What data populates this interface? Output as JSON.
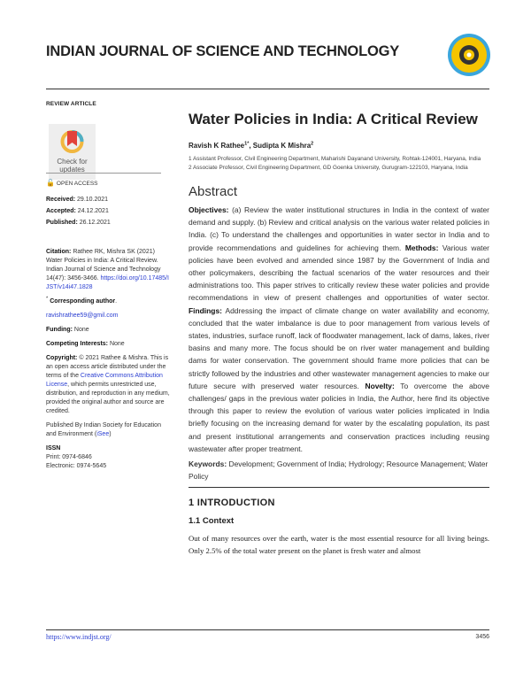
{
  "header": {
    "journal": "INDIAN JOURNAL OF SCIENCE AND TECHNOLOGY",
    "article_type": "REVIEW ARTICLE"
  },
  "badge": {
    "line1": "Check for",
    "line2": "updates"
  },
  "sidebar": {
    "open_access": "OPEN ACCESS",
    "received_label": "Received:",
    "received": "29.10.2021",
    "accepted_label": "Accepted:",
    "accepted": "24.12.2021",
    "published_label": "Published:",
    "published": "26.12.2021",
    "citation_label": "Citation:",
    "citation_text": "Rathee RK, Mishra SK (2021) Water Policies in India: A Critical Review. Indian Journal of Science and Technology 14(47): 3456-3466.",
    "citation_link": "https://doi.org/10.17485/IJST/v14i47.1828",
    "corresponding_mark": "*",
    "corresponding_label": "Corresponding author",
    "email": "ravishrathee59@gmil.com",
    "funding_label": "Funding:",
    "funding": "None",
    "competing_label": "Competing Interests:",
    "competing": "None",
    "copyright_label": "Copyright:",
    "copyright_text": "© 2021 Rathee & Mishra. This is an open access article distributed under the terms of the",
    "license_link": "Creative Commons Attribution License",
    "copyright_tail": ", which permits unrestricted use, distribution, and reproduction in any medium, provided the original author and source are credited.",
    "publisher_text": "Published By Indian Society for Education and Environment (",
    "publisher_link": "iSee",
    "publisher_close": ")",
    "issn_label": "ISSN",
    "print": "Print: 0974-6846",
    "electronic": "Electronic: 0974-5645"
  },
  "article": {
    "title": "Water Policies in India: A Critical Review",
    "authors": [
      {
        "name": "Ravish K Rathee",
        "sup": "1*"
      },
      {
        "name": "Sudipta K Mishra",
        "sup": "2"
      }
    ],
    "author_sep": ", ",
    "affiliations": [
      "1 Assistant Professor, Civil Engineering Department, Maharishi Dayanand University, Rohtak-124001, Haryana, India",
      "2 Associate Professor, Civil Engineering Department, GD Goenka University, Gurugram-122103, Haryana, India"
    ]
  },
  "abstract": {
    "heading": "Abstract",
    "sections": [
      {
        "label": "Objectives:",
        "text": " (a) Review the water institutional structures in India in the context of water demand and supply. (b) Review and critical analysis on the various water related policies in India. (c) To understand the challenges and opportunities in water sector in India and to provide recommendations and guidelines for achieving them. "
      },
      {
        "label": "Methods:",
        "text": " Various water policies have been evolved and amended since 1987 by the Government of India and other policymakers, describing the factual scenarios of the water resources and their administrations too. This paper strives to critically review these water policies and provide recommendations in view of present challenges and opportunities of water sector. "
      },
      {
        "label": "Findings:",
        "text": " Addressing the impact of climate change on water availability and economy, concluded that the water imbalance is due to poor management from various levels of states, industries, surface runoff, lack of floodwater management, lack of dams, lakes, river basins and many more. The focus should be on river water management and building dams for water conservation. The government should frame more policies that can be strictly followed by the industries and other wastewater management agencies to make our future secure with preserved water resources. "
      },
      {
        "label": "Novelty:",
        "text": " To overcome the above challenges/ gaps in the previous water policies in India, the Author, here find its objective through this paper to review the evolution of various water policies implicated in India briefly focusing on the increasing demand for water by the escalating population, its past and present institutional arrangements and conservation practices including reusing wastewater after proper treatment."
      }
    ],
    "keywords_label": "Keywords:",
    "keywords": " Development; Government of India; Hydrology; Resource Management; Water Policy"
  },
  "intro": {
    "heading": "1  INTRODUCTION",
    "subheading": "1.1 Context",
    "text": "Out of many resources over the earth, water is the most essential resource for all living beings. Only 2.5% of the total water present on the planet is fresh water and almost"
  },
  "footer": {
    "url": "https://www.indjst.org/",
    "page": "3456"
  },
  "colors": {
    "link": "#2a3ed1",
    "logo_yellow": "#f5c400",
    "logo_blue": "#3aa6dd"
  }
}
